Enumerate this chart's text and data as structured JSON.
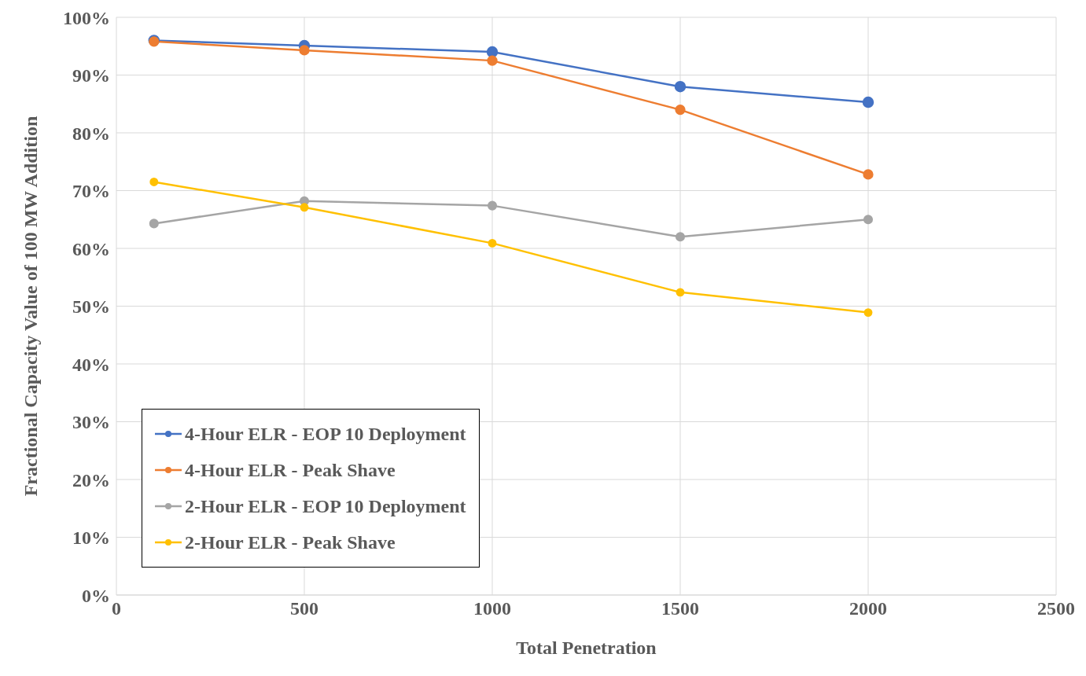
{
  "chart_data": {
    "type": "line",
    "xlabel": "Total Penetration",
    "ylabel": "Fractional Capacity Value of 100 MW Addition",
    "x": [
      100,
      500,
      1000,
      1500,
      2000
    ],
    "series": [
      {
        "name": "4-Hour ELR - EOP 10 Deployment",
        "color": "#4472c4",
        "values": [
          96.0,
          95.1,
          94.0,
          88.0,
          85.3
        ]
      },
      {
        "name": "4-Hour ELR - Peak Shave",
        "color": "#ed7d31",
        "values": [
          95.8,
          94.3,
          92.5,
          84.0,
          72.8
        ]
      },
      {
        "name": "2-Hour ELR - EOP 10 Deployment",
        "color": "#a5a5a5",
        "values": [
          64.3,
          68.2,
          67.4,
          62.0,
          65.0
        ]
      },
      {
        "name": "2-Hour ELR - Peak Shave",
        "color": "#ffc000",
        "values": [
          71.5,
          67.1,
          60.9,
          52.4,
          48.9
        ]
      }
    ],
    "xlim": [
      0,
      2500
    ],
    "xticks": [
      0,
      500,
      1000,
      1500,
      2000,
      2500
    ],
    "ylim": [
      0,
      100
    ],
    "yticks": [
      {
        "value": 0,
        "label": "0%"
      },
      {
        "value": 10,
        "label": "10%"
      },
      {
        "value": 20,
        "label": "20%"
      },
      {
        "value": 30,
        "label": "30%"
      },
      {
        "value": 40,
        "label": "40%"
      },
      {
        "value": 50,
        "label": "50%"
      },
      {
        "value": 60,
        "label": "60%"
      },
      {
        "value": 70,
        "label": "70%"
      },
      {
        "value": 80,
        "label": "80%"
      },
      {
        "value": 90,
        "label": "90%"
      },
      {
        "value": 100,
        "label": "100%"
      }
    ],
    "grid": true,
    "legend": "bottom left",
    "marker": "circle",
    "line_style": "solid"
  }
}
